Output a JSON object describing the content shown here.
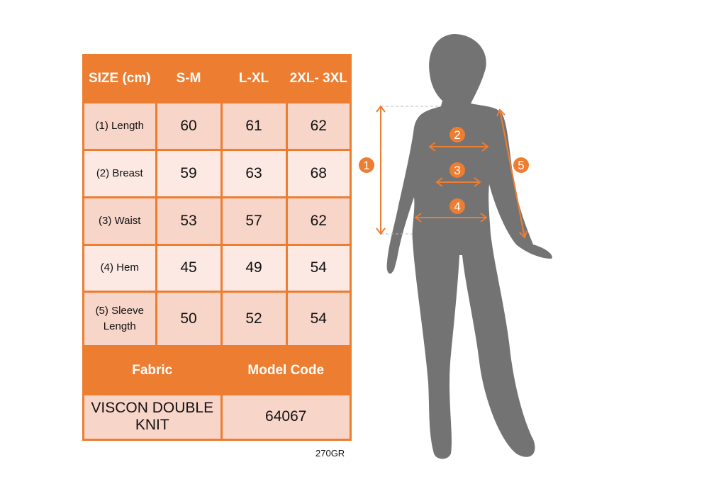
{
  "table": {
    "headers": [
      "SIZE (cm)",
      "S-M",
      "L-XL",
      "2XL- 3XL"
    ],
    "rows": [
      {
        "label": "(1) Length",
        "values": [
          "60",
          "61",
          "62"
        ]
      },
      {
        "label": "(2) Breast",
        "values": [
          "59",
          "63",
          "68"
        ]
      },
      {
        "label": "(3) Waist",
        "values": [
          "53",
          "57",
          "62"
        ]
      },
      {
        "label": "(4) Hem",
        "values": [
          "45",
          "49",
          "54"
        ]
      },
      {
        "label": "(5) Sleeve Length",
        "values": [
          "50",
          "52",
          "54"
        ]
      }
    ],
    "fabric_header": "Fabric",
    "model_code_header": "Model Code",
    "fabric_value": "VISCON DOUBLE KNIT",
    "model_code_value": "64067"
  },
  "note": "270GR",
  "figure": {
    "badges": [
      "1",
      "2",
      "3",
      "4",
      "5"
    ]
  },
  "colors": {
    "accent": "#ED7D31",
    "row_dark": "#F8D5C9",
    "row_light": "#FCE9E3",
    "silhouette": "#737373"
  }
}
